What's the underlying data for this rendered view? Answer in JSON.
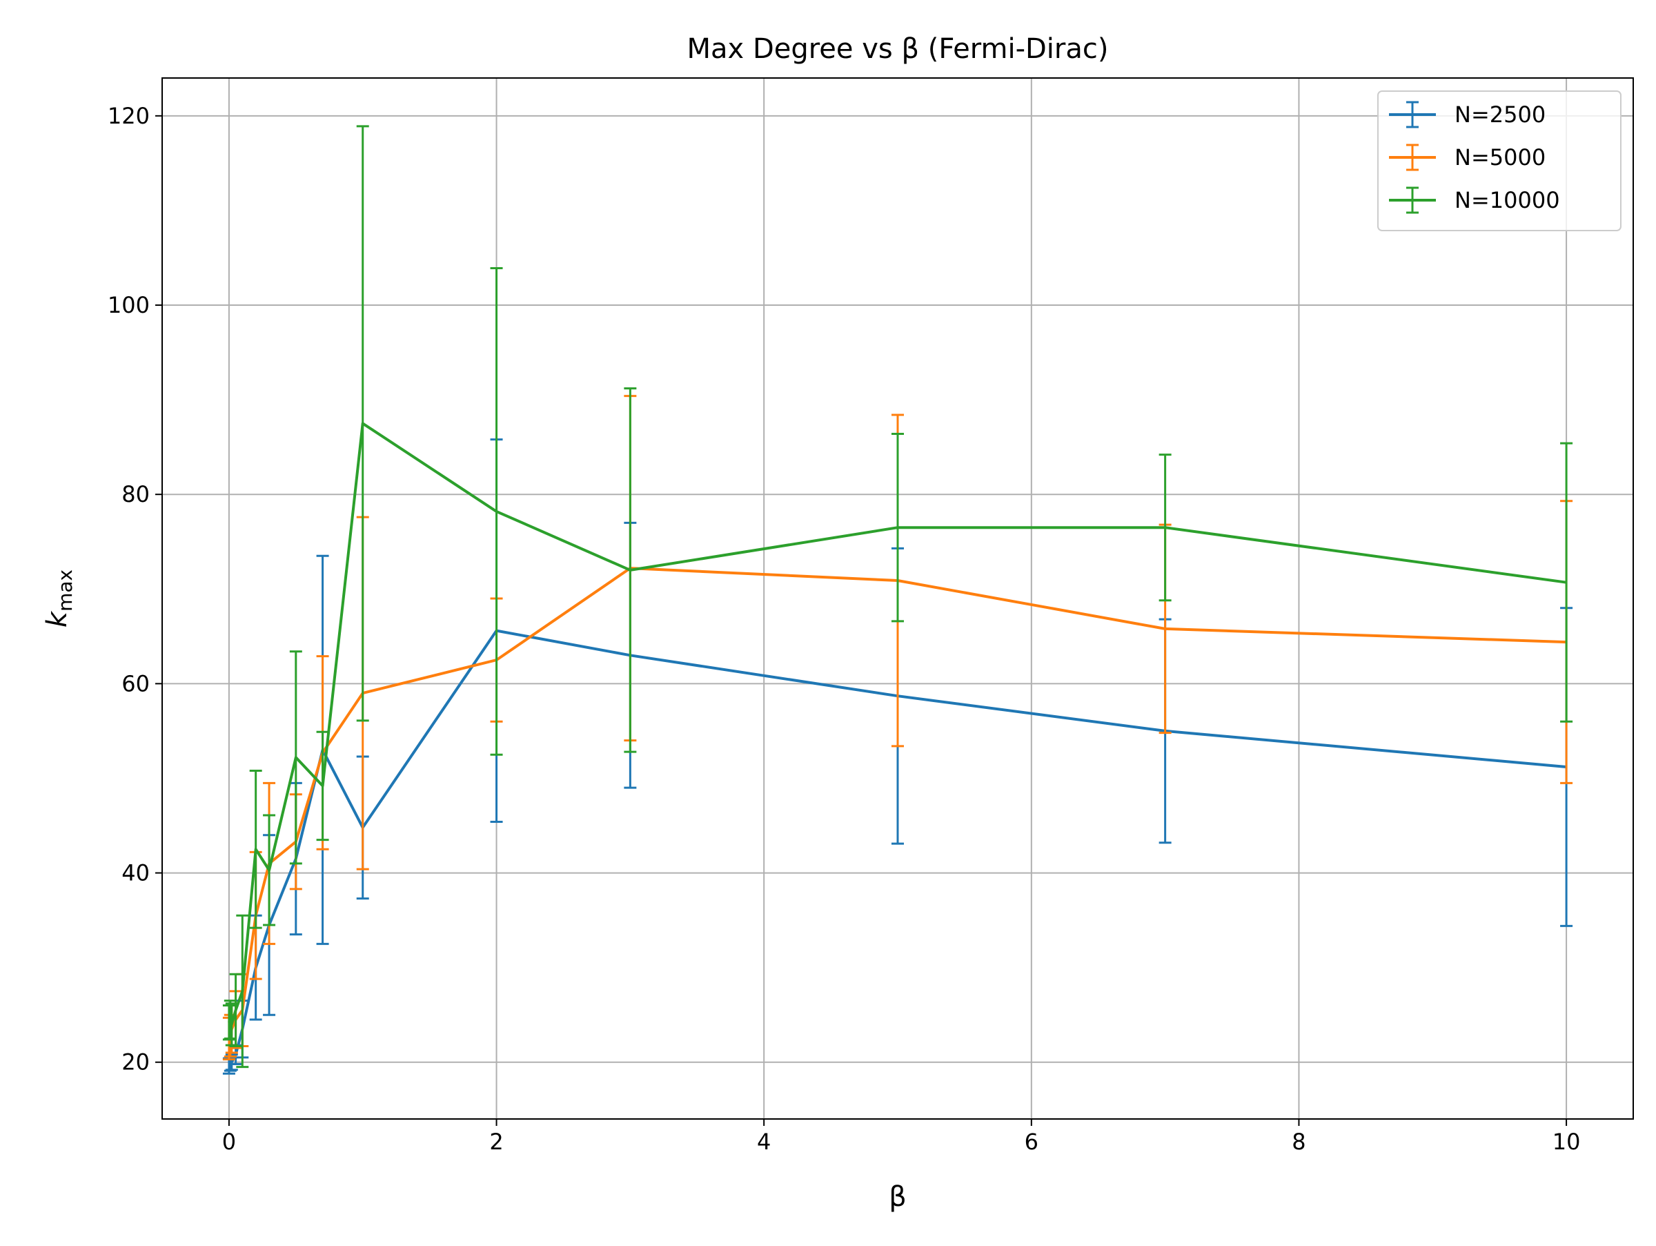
{
  "chart_data": {
    "type": "line",
    "title": "Max Degree vs β (Fermi-Dirac)",
    "xlabel": "β",
    "ylabel": "k",
    "ylabel_subscript": "max",
    "xlim": [
      -0.5,
      10.5
    ],
    "ylim": [
      14,
      124
    ],
    "x_ticks": [
      0,
      2,
      4,
      6,
      8,
      10
    ],
    "y_ticks": [
      20,
      40,
      60,
      80,
      100,
      120
    ],
    "grid": true,
    "legend_position": "top-right",
    "error_bars": true,
    "series": [
      {
        "name": "N=2500",
        "color": "#1f77b4",
        "x": [
          0.0,
          0.01,
          0.02,
          0.05,
          0.1,
          0.2,
          0.3,
          0.5,
          0.7,
          1,
          2,
          3,
          5,
          7,
          10
        ],
        "y": [
          19.6,
          19.8,
          20.0,
          20.8,
          23.5,
          30.0,
          34.5,
          41.5,
          53.0,
          44.8,
          65.6,
          63.0,
          58.7,
          55.0,
          51.2
        ],
        "err": [
          0.8,
          0.7,
          0.8,
          1.0,
          3.0,
          5.5,
          9.5,
          8.0,
          20.5,
          7.5,
          20.2,
          14.0,
          15.6,
          11.8,
          16.8
        ]
      },
      {
        "name": "N=5000",
        "color": "#ff7f0e",
        "x": [
          0.0,
          0.01,
          0.02,
          0.05,
          0.1,
          0.2,
          0.3,
          0.5,
          0.7,
          1,
          2,
          3,
          5,
          7,
          10
        ],
        "y": [
          22.5,
          22.8,
          23.5,
          24.5,
          25.5,
          35.5,
          41.0,
          43.3,
          52.7,
          59.0,
          62.5,
          72.2,
          70.9,
          65.8,
          64.4
        ],
        "err": [
          2.2,
          2.2,
          2.5,
          3.0,
          3.8,
          6.7,
          8.5,
          5.0,
          10.2,
          18.6,
          6.5,
          18.2,
          17.5,
          11.0,
          14.9
        ]
      },
      {
        "name": "N=10000",
        "color": "#2ca02c",
        "x": [
          0.0,
          0.01,
          0.02,
          0.05,
          0.1,
          0.2,
          0.3,
          0.5,
          0.7,
          1,
          2,
          3,
          5,
          7,
          10
        ],
        "y": [
          24.2,
          24.5,
          24.0,
          25.5,
          27.5,
          42.5,
          40.3,
          52.2,
          49.2,
          87.5,
          78.2,
          72.0,
          76.5,
          76.5,
          70.7
        ],
        "err": [
          1.8,
          2.0,
          2.2,
          3.8,
          8.0,
          8.3,
          5.8,
          11.2,
          5.7,
          31.4,
          25.7,
          19.2,
          9.9,
          7.7,
          14.7
        ]
      }
    ]
  }
}
